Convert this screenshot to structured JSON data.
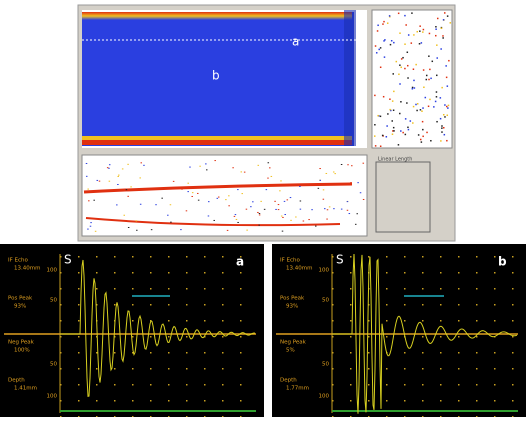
{
  "cscan": {
    "label_a": "a",
    "label_b": "b",
    "side_label": "Linear Length"
  },
  "ascans": [
    {
      "corner": "S",
      "label": "a",
      "readouts": [
        [
          "IF Echo",
          "13.40mm"
        ],
        [
          "Pos Peak",
          "93%"
        ],
        [
          "Neg Peak",
          "100%"
        ],
        [
          "Depth",
          "1.41mm"
        ]
      ],
      "axis": [
        "100",
        "50",
        "50",
        "100"
      ]
    },
    {
      "corner": "S",
      "label": "b",
      "readouts": [
        [
          "IF Echo",
          "13.40mm"
        ],
        [
          "Pos Peak",
          "93%"
        ],
        [
          "Neg Peak",
          "5%"
        ],
        [
          "Depth",
          "1.77mm"
        ]
      ],
      "axis": [
        "100",
        "50",
        "50",
        "100"
      ]
    }
  ]
}
